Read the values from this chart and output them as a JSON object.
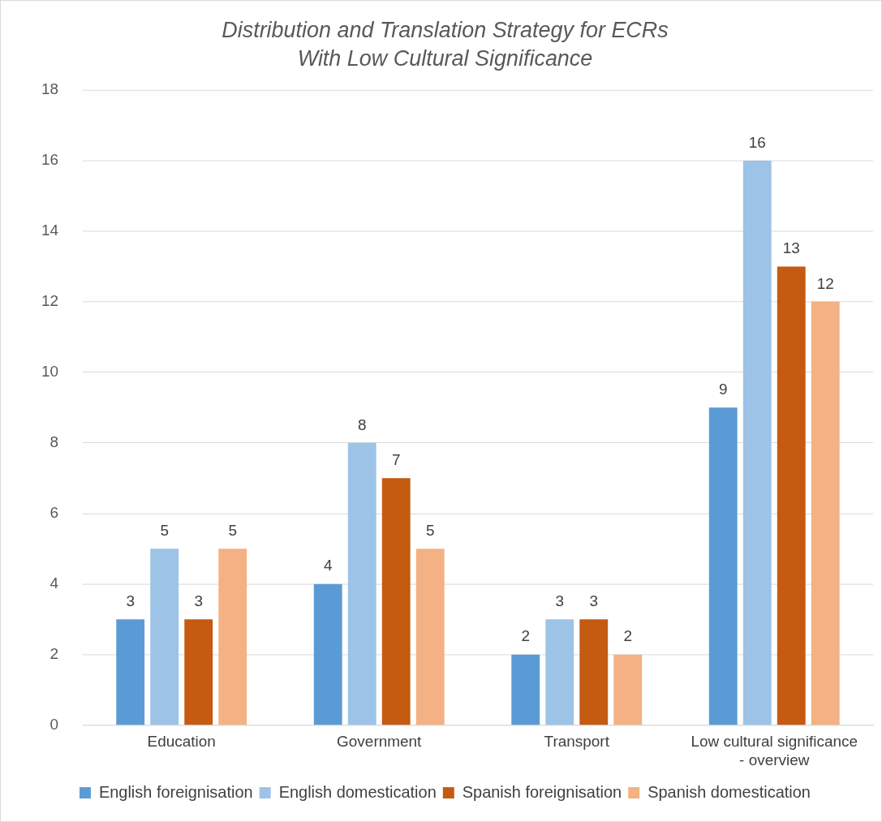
{
  "chart_data": {
    "type": "bar",
    "title": "Distribution and Translation Strategy for ECRs With Low Cultural Significance",
    "categories": [
      "Education",
      "Government",
      "Transport",
      "Low cultural significance - overview"
    ],
    "series": [
      {
        "name": "English foreignisation",
        "color": "#5b9bd5",
        "values": [
          3,
          4,
          2,
          9
        ]
      },
      {
        "name": "English domestication",
        "color": "#9dc3e6",
        "values": [
          5,
          8,
          3,
          16
        ]
      },
      {
        "name": "Spanish foreignisation",
        "color": "#c55a11",
        "values": [
          3,
          7,
          3,
          13
        ]
      },
      {
        "name": "Spanish domestication",
        "color": "#f4b183",
        "values": [
          5,
          5,
          2,
          12
        ]
      }
    ],
    "ylim": [
      0,
      18
    ],
    "yticks": [
      0,
      2,
      4,
      6,
      8,
      10,
      12,
      14,
      16,
      18
    ],
    "grid": "y",
    "legend": "bottom",
    "data_labels": true
  }
}
